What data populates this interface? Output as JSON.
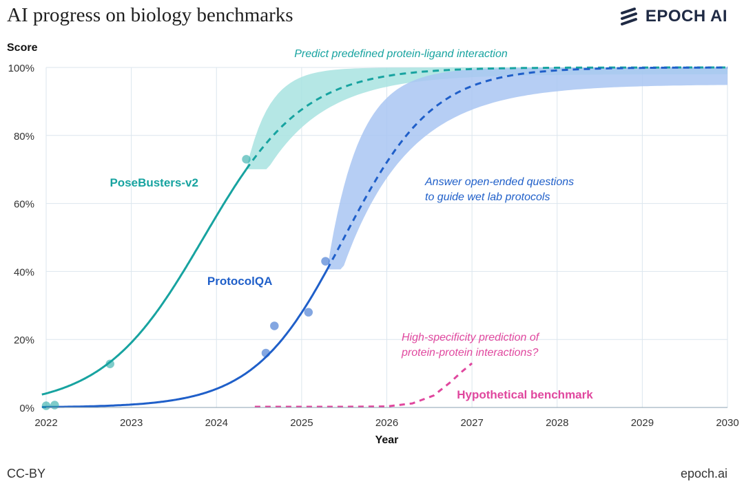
{
  "header": {
    "title": "AI progress on biology benchmarks",
    "brand": "EPOCH AI"
  },
  "footer": {
    "license": "CC-BY",
    "site": "epoch.ai"
  },
  "colors": {
    "posebusters": "#17a3a0",
    "posebusters_band": "#a8e3e0",
    "protocolqa": "#1f5fc9",
    "protocolqa_band": "#a9c6f2",
    "hypothetical": "#e0479e",
    "grid": "#dbe6ee",
    "brand": "#1f2a44"
  },
  "chart_data": {
    "type": "line",
    "ylabel": "Score",
    "xlabel": "Year",
    "xlim": [
      2022,
      2030
    ],
    "ylim": [
      0,
      100
    ],
    "xticks": [
      2022,
      2023,
      2024,
      2025,
      2026,
      2027,
      2028,
      2029,
      2030
    ],
    "yticks": [
      0,
      20,
      40,
      60,
      80,
      100
    ],
    "ytick_labels": [
      "0%",
      "20%",
      "40%",
      "60%",
      "80%",
      "100%"
    ],
    "grid": true,
    "series": [
      {
        "name": "PoseBusters-v2",
        "key": "posebusters",
        "label_pos": [
          2023.85,
          65
        ],
        "fit": {
          "L": 100,
          "k": 1.7,
          "x0": 2023.85
        },
        "fit_solid_range": [
          2021.95,
          2024.35
        ],
        "fit_dashed_range": [
          2024.35,
          2026.0
        ],
        "band": {
          "start": 2024.35,
          "upper_k": 2.6,
          "lower_k": 1.45,
          "flat_until": 2024.6
        },
        "points": [
          [
            2022.0,
            0.5
          ],
          [
            2022.1,
            0.7
          ],
          [
            2022.75,
            12.8
          ],
          [
            2024.35,
            73.0
          ]
        ],
        "annotation": "Predict predefined protein-ligand interaction"
      },
      {
        "name": "ProtocolQA",
        "key": "protocolqa",
        "label_pos": [
          2024.8,
          36
        ],
        "fit": {
          "L": 100,
          "k": 1.9,
          "x0": 2025.5
        },
        "fit_solid_range": [
          2021.95,
          2025.3
        ],
        "fit_dashed_range": [
          2025.3,
          2030.0
        ],
        "band": {
          "start": 2025.3,
          "upper_k": 2.7,
          "lower_k": 1.3,
          "flat_until": 2025.48
        },
        "points": [
          [
            2024.58,
            16.0
          ],
          [
            2024.68,
            24.0
          ],
          [
            2025.08,
            28.0
          ],
          [
            2025.28,
            43.0
          ]
        ],
        "annotation": "Answer open-ended questions to guide wet lab protocols",
        "annotation_lines": [
          "Answer open-ended questions",
          "to guide wet lab protocols"
        ]
      },
      {
        "name": "Hypothetical benchmark",
        "key": "hypothetical",
        "dashed_points": [
          [
            2024.45,
            0.2
          ],
          [
            2025.0,
            0.2
          ],
          [
            2025.5,
            0.2
          ],
          [
            2026.0,
            0.3
          ],
          [
            2026.3,
            1.2
          ],
          [
            2026.55,
            3.5
          ],
          [
            2026.75,
            7.5
          ],
          [
            2026.88,
            10.5
          ],
          [
            2027.0,
            13.0
          ]
        ],
        "annotation": "High-specificity prediction of protein-protein interactions?",
        "annotation_lines": [
          "High-specificity prediction of",
          "protein-protein interactions?"
        ]
      }
    ]
  }
}
